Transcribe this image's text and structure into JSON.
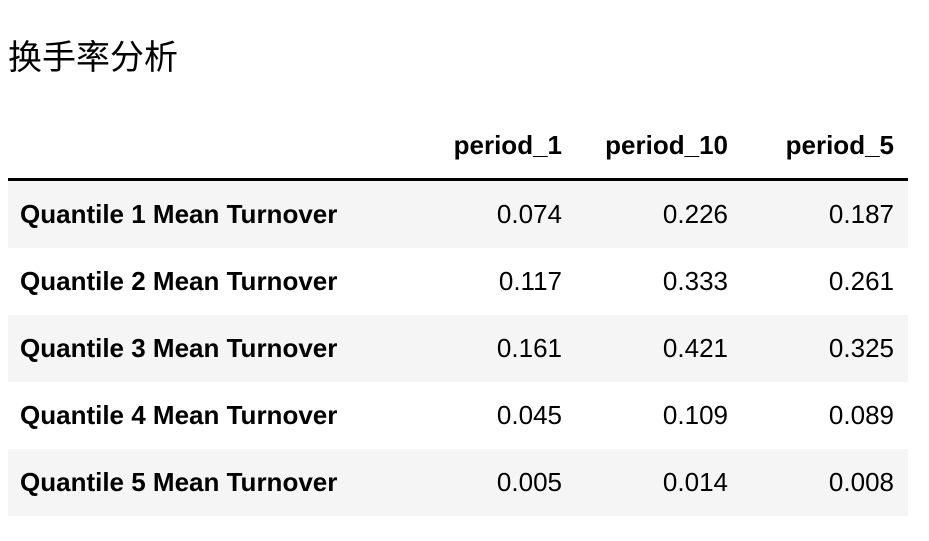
{
  "caption": "换手率分析",
  "table": {
    "columns": [
      "",
      "period_1",
      "period_10",
      "period_5"
    ],
    "rows": [
      {
        "label": "Quantile 1 Mean Turnover",
        "values": [
          "0.074",
          "0.226",
          "0.187"
        ]
      },
      {
        "label": "Quantile 2 Mean Turnover",
        "values": [
          "0.117",
          "0.333",
          "0.261"
        ]
      },
      {
        "label": "Quantile 3 Mean Turnover",
        "values": [
          "0.161",
          "0.421",
          "0.325"
        ]
      },
      {
        "label": "Quantile 4 Mean Turnover",
        "values": [
          "0.045",
          "0.109",
          "0.089"
        ]
      },
      {
        "label": "Quantile 5 Mean Turnover",
        "values": [
          "0.005",
          "0.014",
          "0.008"
        ]
      }
    ]
  },
  "colors": {
    "stripe": "#f5f5f5",
    "header_rule": "#000000",
    "text": "#000000"
  }
}
